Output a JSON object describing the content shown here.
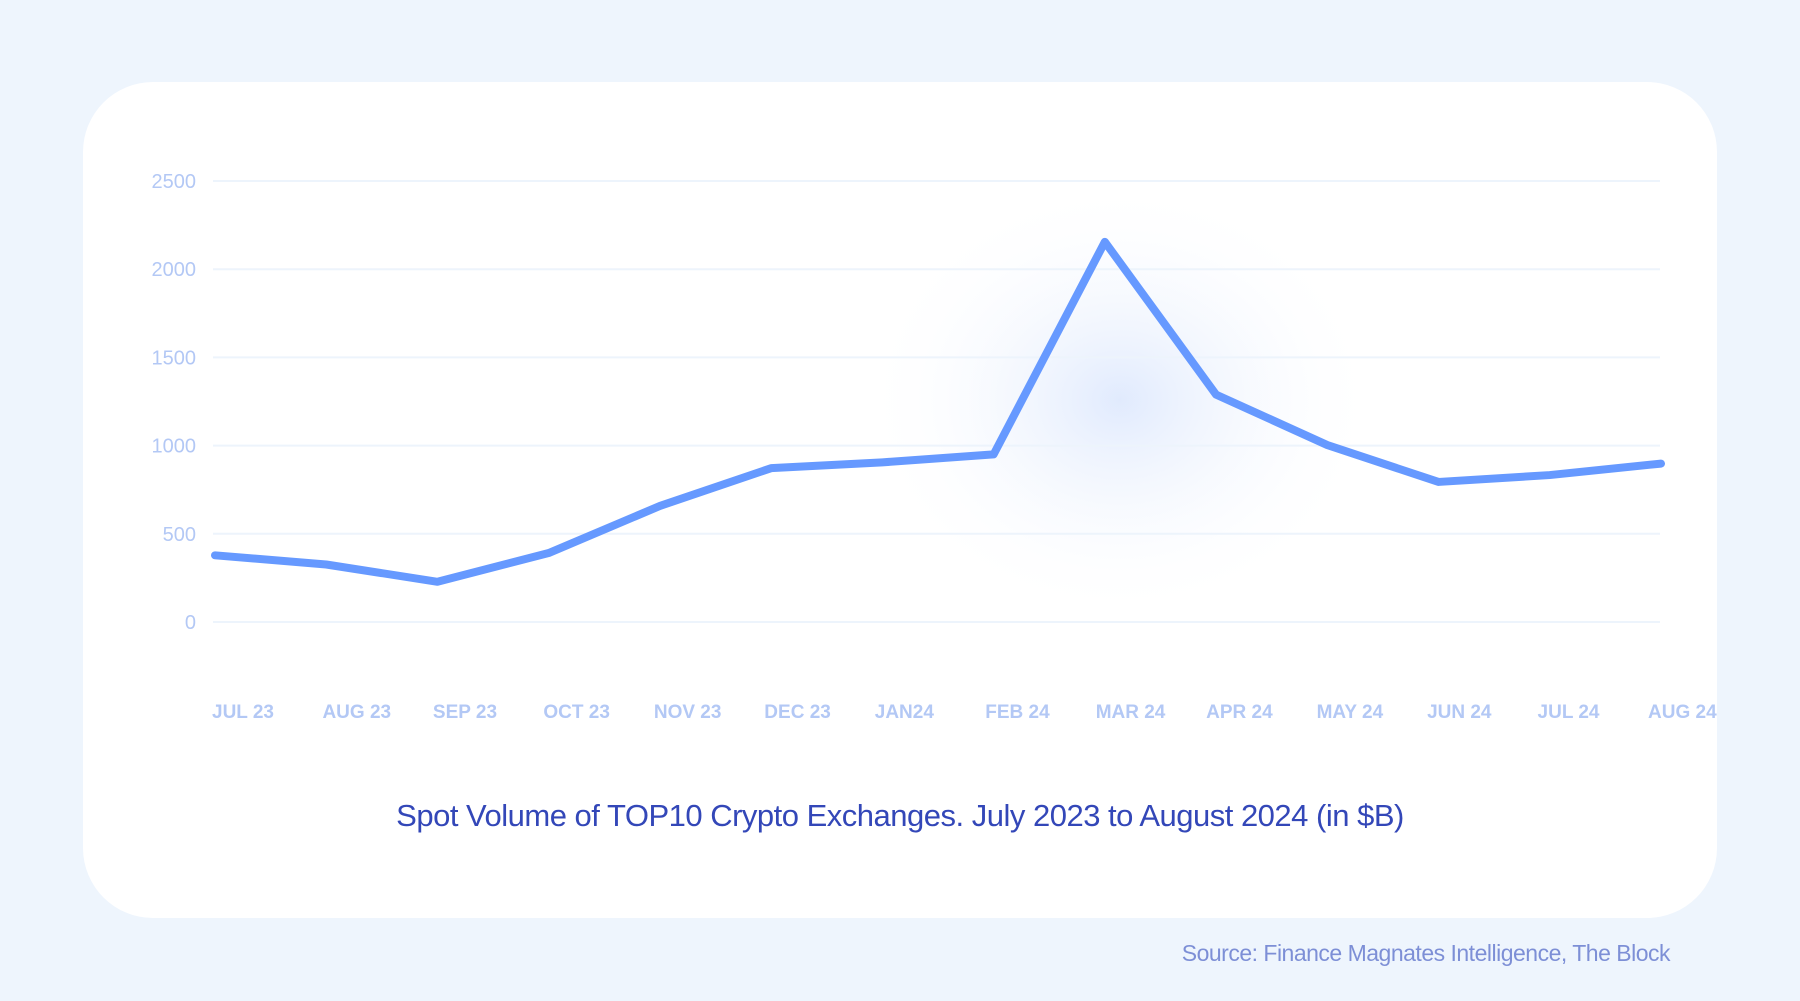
{
  "chart_data": {
    "type": "line",
    "title": "Spot Volume of TOP10 Crypto Exchanges. July 2023 to August 2024 (in $B)",
    "categories": [
      "JUL 23",
      "AUG 23",
      "SEP 23",
      "OCT 23",
      "NOV 23",
      "DEC 23",
      "JAN24",
      "FEB 24",
      "MAR 24",
      "APR 24",
      "MAY 24",
      "JUN 24",
      "JUL 24",
      "AUG 24"
    ],
    "values": [
      378,
      326,
      228,
      391,
      658,
      872,
      905,
      950,
      2155,
      1289,
      1003,
      794,
      833,
      898
    ],
    "yticks": [
      0,
      500,
      1000,
      1500,
      2000,
      2500
    ],
    "ylim": [
      0,
      2500
    ],
    "grid": true,
    "line_color": "#6699ff",
    "grid_color": "#edf4fc",
    "tick_color": "#b3c8f5",
    "source": "Source: Finance Magnates Intelligence, The Block"
  }
}
